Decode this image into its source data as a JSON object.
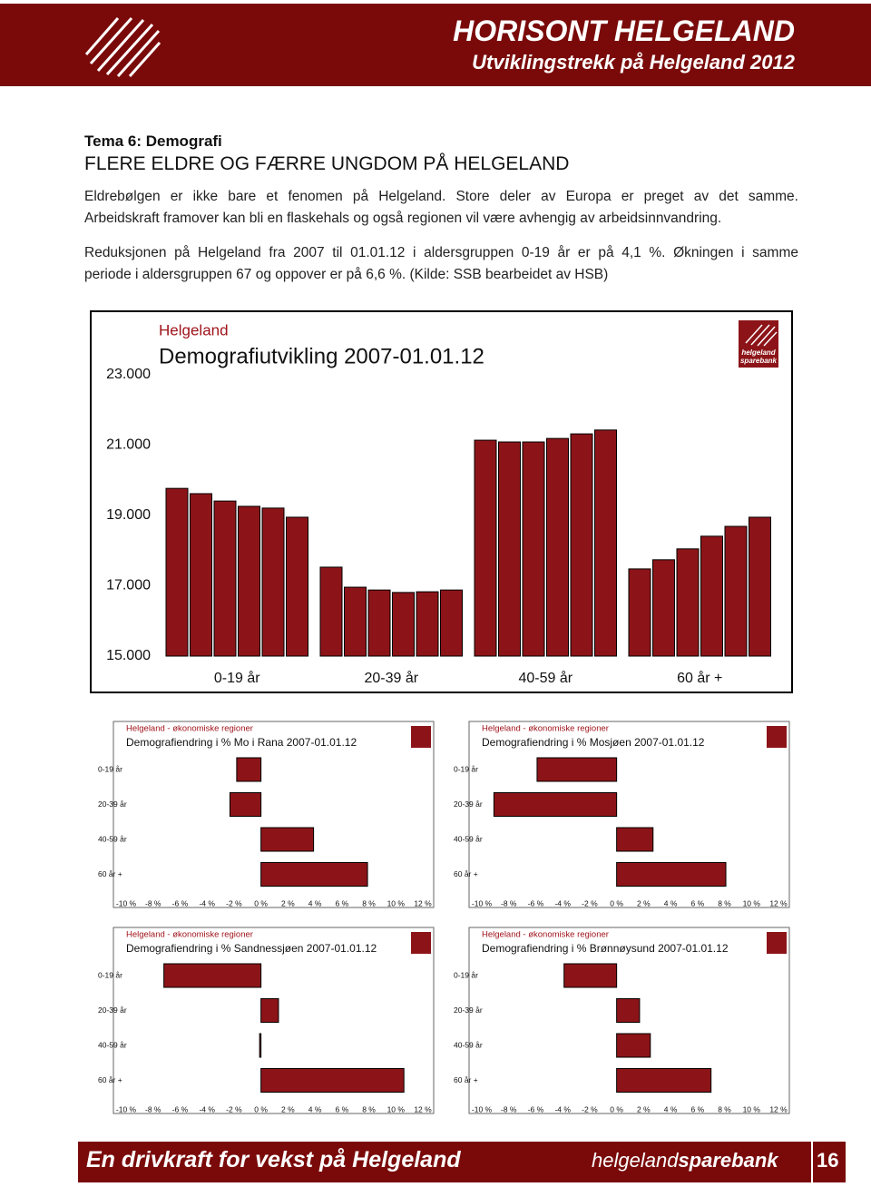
{
  "header": {
    "title": "HORISONT HELGELAND",
    "subtitle": "Utviklingstrekk på Helgeland 2012"
  },
  "section": {
    "theme": "Tema 6: Demografi",
    "heading": "FLERE ELDRE OG FÆRRE UNGDOM PÅ HELGELAND"
  },
  "paragraphs": [
    [
      "Eldrebølgen er ikke bare et fenomen på Helgeland. Store deler av Europa er preget av det samme.",
      "Arbeidskraft framover kan bli en flaskehals og også regionen vil være avhengig av arbeidsinnvandring."
    ],
    [
      "Reduksjonen på Helgeland fra 2007 til 01.01.12 i aldersgruppen 0-19 år er på 4,1 %. Økningen i samme",
      "periode i aldersgruppen 67 og oppover er på 6,6 %. (Kilde: SSB bearbeidet av HSB)"
    ]
  ],
  "chart_data": [
    {
      "type": "bar",
      "subtitle": "Helgeland",
      "title": "Demografiutvikling 2007-01.01.12",
      "logo": [
        "helgeland",
        "sparebank"
      ],
      "categories": [
        "0-19 år",
        "20-39 år",
        "40-59 år",
        "60 år +"
      ],
      "series": [
        {
          "color": "#8c1418",
          "values": [
            19770,
            17530,
            21140,
            17480
          ]
        },
        {
          "color": "#8c1418",
          "values": [
            19620,
            16960,
            21090,
            17740
          ]
        },
        {
          "color": "#8c1418",
          "values": [
            19410,
            16880,
            21090,
            18050
          ]
        },
        {
          "color": "#8c1418",
          "values": [
            19260,
            16810,
            21190,
            18410
          ]
        },
        {
          "color": "#8c1418",
          "values": [
            19210,
            16830,
            21320,
            18690
          ]
        },
        {
          "color": "#8c1418",
          "values": [
            18950,
            16880,
            21430,
            18950
          ]
        }
      ],
      "ylim": [
        15000,
        23000
      ],
      "yticks": [
        {
          "value": 15000,
          "label": "15.000"
        },
        {
          "value": 17000,
          "label": "17.000"
        },
        {
          "value": 19000,
          "label": "19.000"
        },
        {
          "value": 21000,
          "label": "21.000"
        },
        {
          "value": 23000,
          "label": "23.000"
        }
      ]
    },
    {
      "type": "barh",
      "subtitle": "Helgeland - økonomiske regioner",
      "title": "Demografiendring i % Mo i Rana 2007-01.01.12",
      "categories": [
        "0-19 år",
        "20-39 år",
        "40-59 år",
        "60 år +"
      ],
      "values": [
        -1.8,
        -2.3,
        3.9,
        7.9
      ],
      "color": "#8c1418",
      "xlim": [
        -10,
        12
      ],
      "xticks": [
        {
          "value": -10,
          "label": "-10 %"
        },
        {
          "value": -8,
          "label": "-8 %"
        },
        {
          "value": -6,
          "label": "-6 %"
        },
        {
          "value": -4,
          "label": "-4 %"
        },
        {
          "value": -2,
          "label": "-2 %"
        },
        {
          "value": 0,
          "label": "0 %"
        },
        {
          "value": 2,
          "label": "2 %"
        },
        {
          "value": 4,
          "label": "4 %"
        },
        {
          "value": 6,
          "label": "6 %"
        },
        {
          "value": 8,
          "label": "8 %"
        },
        {
          "value": 10,
          "label": "10 %"
        },
        {
          "value": 12,
          "label": "12 %"
        }
      ]
    },
    {
      "type": "barh",
      "subtitle": "Helgeland - økonomiske regioner",
      "title": "Demografiendring i % Mosjøen 2007-01.01.12",
      "categories": [
        "0-19 år",
        "20-39 år",
        "40-59 år",
        "60 år +"
      ],
      "values": [
        -5.9,
        -9.1,
        2.7,
        8.1
      ],
      "color": "#8c1418",
      "xlim": [
        -10,
        12
      ],
      "xticks": [
        {
          "value": -10,
          "label": "-10 %"
        },
        {
          "value": -8,
          "label": "-8 %"
        },
        {
          "value": -6,
          "label": "-6 %"
        },
        {
          "value": -4,
          "label": "-4 %"
        },
        {
          "value": -2,
          "label": "-2 %"
        },
        {
          "value": 0,
          "label": "0 %"
        },
        {
          "value": 2,
          "label": "2 %"
        },
        {
          "value": 4,
          "label": "4 %"
        },
        {
          "value": 6,
          "label": "6 %"
        },
        {
          "value": 8,
          "label": "8 %"
        },
        {
          "value": 10,
          "label": "10 %"
        },
        {
          "value": 12,
          "label": "12 %"
        }
      ]
    },
    {
      "type": "barh",
      "subtitle": "Helgeland - økonomiske regioner",
      "title": "Demografiendring i % Sandnessjøen 2007-01.01.12",
      "categories": [
        "0-19 år",
        "20-39 år",
        "40-59 år",
        "60 år +"
      ],
      "values": [
        -7.2,
        1.3,
        -0.1,
        10.6
      ],
      "color": "#8c1418",
      "xlim": [
        -10,
        12
      ],
      "xticks": [
        {
          "value": -10,
          "label": "-10 %"
        },
        {
          "value": -8,
          "label": "-8 %"
        },
        {
          "value": -6,
          "label": "-6 %"
        },
        {
          "value": -4,
          "label": "-4 %"
        },
        {
          "value": -2,
          "label": "-2 %"
        },
        {
          "value": 0,
          "label": "0 %"
        },
        {
          "value": 2,
          "label": "2 %"
        },
        {
          "value": 4,
          "label": "4 %"
        },
        {
          "value": 6,
          "label": "6 %"
        },
        {
          "value": 8,
          "label": "8 %"
        },
        {
          "value": 10,
          "label": "10 %"
        },
        {
          "value": 12,
          "label": "12 %"
        }
      ]
    },
    {
      "type": "barh",
      "subtitle": "Helgeland - økonomiske regioner",
      "title": "Demografiendring i % Brønnøysund 2007-01.01.12",
      "categories": [
        "0-19 år",
        "20-39 år",
        "40-59 år",
        "60 år +"
      ],
      "values": [
        -3.9,
        1.7,
        2.5,
        7.0
      ],
      "color": "#8c1418",
      "xlim": [
        -10,
        12
      ],
      "xticks": [
        {
          "value": -10,
          "label": "-10 %"
        },
        {
          "value": -8,
          "label": "-8 %"
        },
        {
          "value": -6,
          "label": "-6 %"
        },
        {
          "value": -4,
          "label": "-4 %"
        },
        {
          "value": -2,
          "label": "-2 %"
        },
        {
          "value": 0,
          "label": "0 %"
        },
        {
          "value": 2,
          "label": "2 %"
        },
        {
          "value": 4,
          "label": "4 %"
        },
        {
          "value": 6,
          "label": "6 %"
        },
        {
          "value": 8,
          "label": "8 %"
        },
        {
          "value": 10,
          "label": "10 %"
        },
        {
          "value": 12,
          "label": "12 %"
        }
      ]
    }
  ],
  "footer": {
    "slogan": "En drivkraft for vekst på Helgeland",
    "brand": [
      "helgeland",
      "sparebank"
    ],
    "page": "16"
  }
}
